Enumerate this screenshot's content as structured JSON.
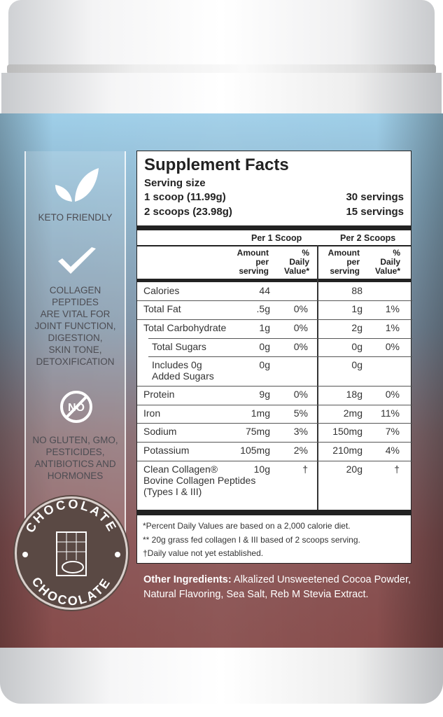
{
  "side_panel": {
    "keto": "KETO FRIENDLY",
    "collagen_lines": [
      "COLLAGEN",
      "PEPTIDES",
      "ARE VITAL FOR",
      "JOINT FUNCTION,",
      "DIGESTION,",
      "SKIN TONE,",
      "DETOXIFICATION"
    ],
    "no_icon_text": "NO",
    "free_from_lines": [
      "NO GLUTEN, GMO,",
      "PESTICIDES,",
      "ANTIBIOTICS AND",
      "HORMONES"
    ],
    "flavor_badge": "CHOCOLATE"
  },
  "facts": {
    "title": "Supplement Facts",
    "serving_size_label": "Serving size",
    "servings": [
      {
        "size": "1 scoop (11.99g)",
        "count": "30 servings"
      },
      {
        "size": "2 scoops (23.98g)",
        "count": "15 servings"
      }
    ],
    "group_headers": [
      "Per 1 Scoop",
      "Per 2 Scoops"
    ],
    "col_amount": [
      "Amount",
      "per",
      "serving"
    ],
    "col_dv": [
      "%",
      "Daily",
      "Value*"
    ],
    "rows": [
      {
        "label": "Calories",
        "a1": "44",
        "d1": "",
        "a2": "88",
        "d2": ""
      },
      {
        "label": "Total Fat",
        "a1": ".5g",
        "d1": "0%",
        "a2": "1g",
        "d2": "1%"
      },
      {
        "label": "Total Carbohydrate",
        "a1": "1g",
        "d1": "0%",
        "a2": "2g",
        "d2": "1%"
      },
      {
        "label": "Total Sugars",
        "a1": "0g",
        "d1": "0%",
        "a2": "0g",
        "d2": "0%",
        "indent": true
      },
      {
        "label": "Includes 0g\nAdded Sugars",
        "a1": "0g",
        "d1": "",
        "a2": "0g",
        "d2": "",
        "indent": true
      },
      {
        "label": "Protein",
        "a1": "9g",
        "d1": "0%",
        "a2": "18g",
        "d2": "0%"
      },
      {
        "label": "Iron",
        "a1": "1mg",
        "d1": "5%",
        "a2": "2mg",
        "d2": "11%"
      },
      {
        "label": "Sodium",
        "a1": "75mg",
        "d1": "3%",
        "a2": "150mg",
        "d2": "7%"
      },
      {
        "label": "Potassium",
        "a1": "105mg",
        "d1": "2%",
        "a2": "210mg",
        "d2": "4%"
      },
      {
        "label": "Clean Collagen®\nBovine Collagen Peptides\n(Types I & III)",
        "a1": "10g",
        "d1": "†",
        "a2": "20g",
        "d2": "†"
      }
    ],
    "footnotes": [
      "*Percent Daily Values are based on a 2,000 calorie diet.",
      "** 20g grass fed collagen I & III based of 2 scoops serving.",
      "†Daily value not yet established."
    ]
  },
  "other_ingredients": {
    "label": "Other Ingredients:",
    "text": " Alkalized Unsweetened Cocoa Powder, Natural Flavoring, Sea Salt, Reb M Stevia Extract."
  }
}
